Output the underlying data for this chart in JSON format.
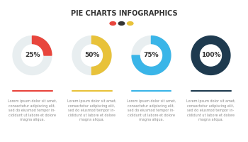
{
  "title": "PIE CHARTS INFOGRAPHICS",
  "title_fontsize": 7,
  "title_color": "#333333",
  "legend_dots": [
    "#e8453c",
    "#333333",
    "#e8c23a"
  ],
  "charts": [
    {
      "percent": 25,
      "label": "25%",
      "color": "#e8453c",
      "bg_color": "#e8eef0",
      "line_color": "#e8453c"
    },
    {
      "percent": 50,
      "label": "50%",
      "color": "#e8c23a",
      "bg_color": "#e8eef0",
      "line_color": "#e8c23a"
    },
    {
      "percent": 75,
      "label": "75%",
      "color": "#3ab5e8",
      "bg_color": "#e8eef0",
      "line_color": "#3ab5e8"
    },
    {
      "percent": 100,
      "label": "100%",
      "color": "#1e3a4f",
      "bg_color": "#e8eef0",
      "line_color": "#1e3a4f"
    }
  ],
  "lorem_text": "Lorem ipsum dolor sit amet,\nconsectetur adipiscing elit,\nsed do eiusmod tempor in-\ncididunt ut labore et dolore\nmagna aliqua.",
  "text_color": "#888888",
  "text_fontsize": 3.5,
  "label_fontsize": 6.5,
  "bg_color": "#ffffff"
}
